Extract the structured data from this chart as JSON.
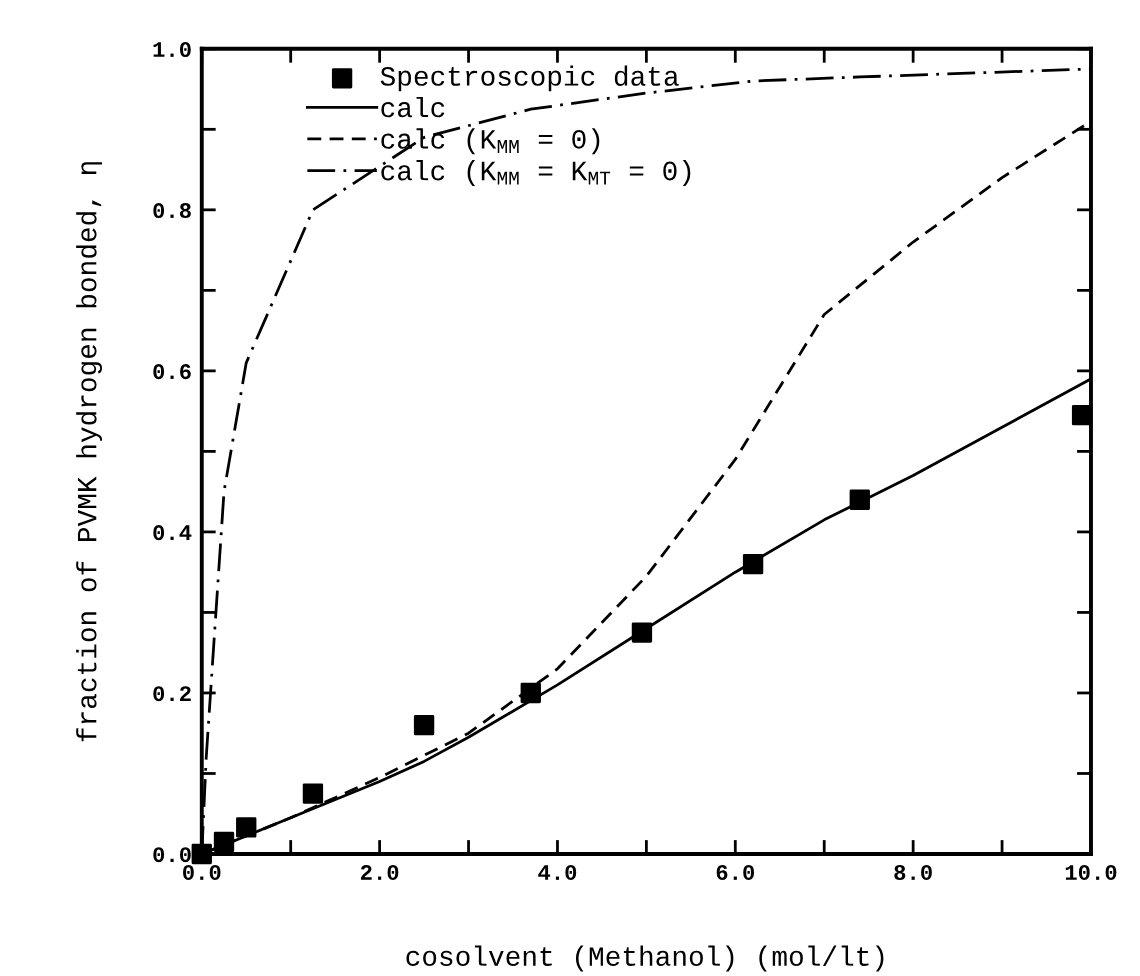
{
  "chart_data": {
    "type": "line",
    "xlabel": "cosolvent (Methanol) (mol/lt)",
    "ylabel": "fraction of PVMK hydrogen bonded, η",
    "xlim": [
      0,
      10
    ],
    "ylim": [
      0,
      1
    ],
    "xticks": [
      {
        "value": 0,
        "label": "0.0"
      },
      {
        "value": 1,
        "label": null
      },
      {
        "value": 2,
        "label": "2.0"
      },
      {
        "value": 3,
        "label": null
      },
      {
        "value": 4,
        "label": "4.0"
      },
      {
        "value": 5,
        "label": null
      },
      {
        "value": 6,
        "label": "6.0"
      },
      {
        "value": 7,
        "label": null
      },
      {
        "value": 8,
        "label": "8.0"
      },
      {
        "value": 9,
        "label": null
      },
      {
        "value": 10,
        "label": "10.0"
      }
    ],
    "yticks": [
      {
        "value": 0,
        "label": "0.0"
      },
      {
        "value": 0.1,
        "label": null
      },
      {
        "value": 0.2,
        "label": "0.2"
      },
      {
        "value": 0.3,
        "label": null
      },
      {
        "value": 0.4,
        "label": "0.4"
      },
      {
        "value": 0.5,
        "label": null
      },
      {
        "value": 0.6,
        "label": "0.6"
      },
      {
        "value": 0.7,
        "label": null
      },
      {
        "value": 0.8,
        "label": "0.8"
      },
      {
        "value": 0.9,
        "label": null
      },
      {
        "value": 1,
        "label": "1.0"
      }
    ],
    "grid": false,
    "legend": "top left",
    "series": [
      {
        "name": "Spectroscopic data",
        "type": "scatter",
        "marker": "square",
        "color": "#000000",
        "x": [
          0,
          0.25,
          0.5,
          1.25,
          2.5,
          3.7,
          4.95,
          6.2,
          7.4,
          9.9
        ],
        "values": [
          0,
          0.015,
          0.033,
          0.075,
          0.16,
          0.2,
          0.275,
          0.36,
          0.44,
          0.545
        ]
      },
      {
        "name": "calc",
        "line_style": "solid",
        "color": "#000000",
        "x": [
          0,
          1,
          2,
          2.5,
          3,
          4,
          5,
          6,
          7,
          8,
          9,
          10
        ],
        "values": [
          0,
          0.045,
          0.09,
          0.115,
          0.145,
          0.21,
          0.28,
          0.35,
          0.415,
          0.47,
          0.53,
          0.59
        ]
      },
      {
        "name": "calc (K$_{MM}$ = 0)",
        "line_style": "dashed",
        "color": "#000000",
        "x": [
          0,
          1,
          2,
          3,
          4,
          5,
          6,
          7,
          8,
          9,
          10
        ],
        "values": [
          0,
          0.045,
          0.095,
          0.15,
          0.23,
          0.345,
          0.49,
          0.67,
          0.76,
          0.84,
          0.91
        ]
      },
      {
        "name": "calc (K$_{MM}$ = K$_{MT}$ = 0)",
        "line_style": "dashdot",
        "color": "#000000",
        "x": [
          0,
          0.05,
          0.25,
          0.5,
          1.25,
          2.5,
          3.7,
          5,
          6.2,
          7.4,
          10
        ],
        "values": [
          0,
          0.12,
          0.45,
          0.61,
          0.8,
          0.89,
          0.925,
          0.945,
          0.96,
          0.965,
          0.975
        ]
      }
    ]
  }
}
